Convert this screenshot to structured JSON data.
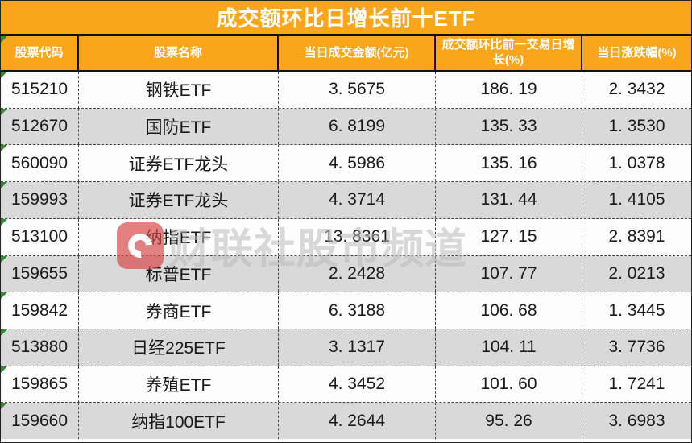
{
  "title": "成交额环比日增长前十ETF",
  "columns": [
    "股票代码",
    "股票名称",
    "当日成交金额(亿元)",
    "成交额环比前一交易日增长(%)",
    "当日涨跌幅(%)"
  ],
  "rows": [
    {
      "code": "515210",
      "name": "钢铁ETF",
      "amount": "3. 5675",
      "growth": "186. 19",
      "change": "2. 3432"
    },
    {
      "code": "512670",
      "name": "国防ETF",
      "amount": "6. 8199",
      "growth": "135. 33",
      "change": "1. 3530"
    },
    {
      "code": "560090",
      "name": "证券ETF龙头",
      "amount": "4. 5986",
      "growth": "135. 16",
      "change": "1. 0378"
    },
    {
      "code": "159993",
      "name": "证券ETF龙头",
      "amount": "4. 3714",
      "growth": "131. 44",
      "change": "1. 4105"
    },
    {
      "code": "513100",
      "name": "纳指ETF",
      "amount": "13. 8361",
      "growth": "127. 15",
      "change": "2. 8391"
    },
    {
      "code": "159655",
      "name": "标普ETF",
      "amount": "2. 2428",
      "growth": "107. 77",
      "change": "2. 0213"
    },
    {
      "code": "159842",
      "name": "券商ETF",
      "amount": "6. 3188",
      "growth": "106. 68",
      "change": "1. 3445"
    },
    {
      "code": "513880",
      "name": "日经225ETF",
      "amount": "3. 1317",
      "growth": "104. 11",
      "change": "3. 7736"
    },
    {
      "code": "159865",
      "name": "养殖ETF",
      "amount": "4. 3452",
      "growth": "101. 60",
      "change": "1. 7241"
    },
    {
      "code": "159660",
      "name": "纳指100ETF",
      "amount": "4. 2644",
      "growth": "95. 26",
      "change": "3. 6983"
    }
  ],
  "watermark": {
    "text": "财联社股市频道",
    "logo": "cailianshe-logo"
  },
  "colors": {
    "header_bg": "#FAA61A",
    "header_text": "#FFFFFF",
    "alt_row_bg": "#D9D9D9",
    "row_bg": "#FDFDFD",
    "body_text": "#1A1A1A",
    "marker_green": "#2E8B2E",
    "watermark_red": "#D64242"
  }
}
